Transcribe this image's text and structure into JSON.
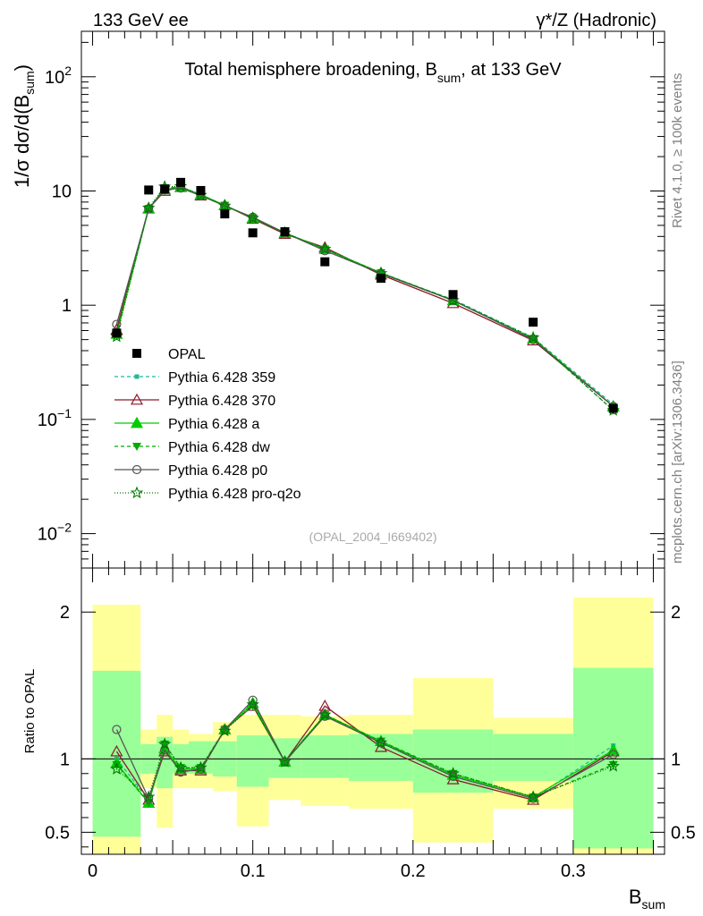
{
  "header": {
    "left_label": "133 GeV ee",
    "right_label": "γ*/Z (Hadronic)",
    "side_label_top": "Rivet 4.1.0, ≥ 100k events",
    "side_label_bottom": "mcplots.cern.ch [arXiv:1306.3436]"
  },
  "chart_data": [
    {
      "type": "line",
      "title": "Total hemisphere broadening, B_sum, at 133 GeV",
      "title_main": "Total hemisphere broadening, B",
      "title_sub": "sum",
      "title_tail": ", at 133 GeV",
      "ylabel": "1/σ  dσ/d(B_sum)",
      "yscale": "log",
      "ylim": [
        0.005,
        250
      ],
      "xlim": [
        -0.007,
        0.357
      ],
      "y_ticks": [
        {
          "value": 0.01,
          "base": "10",
          "exp": "−2"
        },
        {
          "value": 0.1,
          "base": "10",
          "exp": "−1"
        },
        {
          "value": 1,
          "base": "1",
          "exp": ""
        },
        {
          "value": 10,
          "base": "10",
          "exp": ""
        },
        {
          "value": 100,
          "base": "10",
          "exp": "2"
        }
      ],
      "watermark": "(OPAL_2004_I669402)",
      "legend_position": "bottom-left",
      "data": {
        "name": "OPAL",
        "x": [
          0.015,
          0.035,
          0.045,
          0.055,
          0.0675,
          0.0825,
          0.1,
          0.12,
          0.145,
          0.18,
          0.225,
          0.275,
          0.325
        ],
        "values": [
          0.57,
          10.2,
          10.4,
          11.9,
          10.1,
          6.3,
          4.3,
          4.4,
          2.4,
          1.72,
          1.24,
          0.71,
          0.125
        ]
      },
      "series": [
        {
          "name": "Pythia 6.428 359",
          "color": "#1fb89a",
          "marker": "square-small",
          "dash": "4,3",
          "values": [
            0.56,
            7.1,
            10.5,
            10.9,
            9.2,
            7.5,
            5.8,
            4.3,
            3.1,
            1.9,
            1.12,
            0.52,
            0.135
          ]
        },
        {
          "name": "Pythia 6.428 370",
          "color": "#8b1a2a",
          "marker": "triangle-open",
          "dash": "",
          "values": [
            0.61,
            7.0,
            10.0,
            10.8,
            9.1,
            7.5,
            5.7,
            4.2,
            3.2,
            1.85,
            1.04,
            0.49,
            0.13
          ]
        },
        {
          "name": "Pythia 6.428 a",
          "color": "#00cc00",
          "marker": "triangle-filled",
          "dash": "",
          "values": [
            0.56,
            7.0,
            10.3,
            10.8,
            9.3,
            7.5,
            5.8,
            4.3,
            3.1,
            1.92,
            1.1,
            0.51,
            0.13
          ]
        },
        {
          "name": "Pythia 6.428 dw",
          "color": "#00aa00",
          "marker": "triangle-down",
          "dash": "4,3",
          "values": [
            0.55,
            7.0,
            10.6,
            10.9,
            9.2,
            7.5,
            5.8,
            4.3,
            3.1,
            1.92,
            1.11,
            0.51,
            0.12
          ]
        },
        {
          "name": "Pythia 6.428 p0",
          "color": "#555555",
          "marker": "circle-open",
          "dash": "",
          "values": [
            0.68,
            7.0,
            10.2,
            10.6,
            9.1,
            7.4,
            5.9,
            4.3,
            3.0,
            1.9,
            1.1,
            0.5,
            0.13
          ]
        },
        {
          "name": "Pythia 6.428 pro-q2o",
          "color": "#007700",
          "marker": "star-open",
          "dash": "1,2",
          "values": [
            0.53,
            7.1,
            10.9,
            11.0,
            9.2,
            7.4,
            5.8,
            4.3,
            3.1,
            1.9,
            1.1,
            0.52,
            0.12
          ]
        }
      ]
    },
    {
      "type": "line",
      "title": "Ratio to OPAL",
      "ylabel": "Ratio to OPAL",
      "xlabel": "B_sum",
      "xlabel_main": "B",
      "xlabel_sub": "sum",
      "ylim": [
        0.35,
        2.3
      ],
      "xlim": [
        -0.007,
        0.357
      ],
      "y_ticks": [
        0.5,
        1,
        2
      ],
      "x_ticks": [
        0,
        0.1,
        0.2,
        0.3
      ],
      "x_tick_labels": [
        "0",
        "0.1",
        "0.2",
        "0.3"
      ],
      "reference_line": 1,
      "bins": [
        {
          "lo": 0.0,
          "hi": 0.03,
          "stat_lo": 0.47,
          "stat_hi": 1.6,
          "tot_lo": 0.0,
          "tot_hi": 2.05
        },
        {
          "lo": 0.03,
          "hi": 0.04,
          "stat_lo": 0.9,
          "stat_hi": 1.1,
          "tot_lo": 0.8,
          "tot_hi": 1.2
        },
        {
          "lo": 0.04,
          "hi": 0.05,
          "stat_lo": 0.8,
          "stat_hi": 1.15,
          "tot_lo": 0.53,
          "tot_hi": 1.3
        },
        {
          "lo": 0.05,
          "hi": 0.06,
          "stat_lo": 0.9,
          "stat_hi": 1.1,
          "tot_lo": 0.8,
          "tot_hi": 1.2
        },
        {
          "lo": 0.06,
          "hi": 0.075,
          "stat_lo": 0.9,
          "stat_hi": 1.12,
          "tot_lo": 0.8,
          "tot_hi": 1.17
        },
        {
          "lo": 0.075,
          "hi": 0.09,
          "stat_lo": 0.88,
          "stat_hi": 1.12,
          "tot_lo": 0.78,
          "tot_hi": 1.25
        },
        {
          "lo": 0.09,
          "hi": 0.11,
          "stat_lo": 0.81,
          "stat_hi": 1.16,
          "tot_lo": 0.54,
          "tot_hi": 1.3
        },
        {
          "lo": 0.11,
          "hi": 0.13,
          "stat_lo": 0.87,
          "stat_hi": 1.14,
          "tot_lo": 0.72,
          "tot_hi": 1.3
        },
        {
          "lo": 0.13,
          "hi": 0.16,
          "stat_lo": 0.87,
          "stat_hi": 1.16,
          "tot_lo": 0.68,
          "tot_hi": 1.29
        },
        {
          "lo": 0.16,
          "hi": 0.2,
          "stat_lo": 0.85,
          "stat_hi": 1.17,
          "tot_lo": 0.66,
          "tot_hi": 1.3
        },
        {
          "lo": 0.2,
          "hi": 0.25,
          "stat_lo": 0.77,
          "stat_hi": 1.2,
          "tot_lo": 0.43,
          "tot_hi": 1.55
        },
        {
          "lo": 0.25,
          "hi": 0.3,
          "stat_lo": 0.85,
          "stat_hi": 1.17,
          "tot_lo": 0.66,
          "tot_hi": 1.28
        },
        {
          "lo": 0.3,
          "hi": 0.35,
          "stat_lo": 0.39,
          "stat_hi": 1.62,
          "tot_lo": 0.0,
          "tot_hi": 2.1
        }
      ],
      "stat_color": "#99ff99",
      "tot_color": "#ffff99",
      "series_ratios": [
        [
          1.0,
          0.72,
          1.06,
          0.93,
          0.93,
          1.2,
          1.38,
          0.98,
          1.3,
          1.11,
          0.88,
          0.73,
          1.09
        ],
        [
          1.05,
          0.72,
          1.05,
          0.92,
          0.92,
          1.2,
          1.36,
          0.98,
          1.36,
          1.08,
          0.86,
          0.72,
          1.05
        ],
        [
          0.97,
          0.7,
          1.07,
          0.93,
          0.93,
          1.2,
          1.38,
          0.98,
          1.3,
          1.12,
          0.89,
          0.74,
          1.06
        ],
        [
          0.96,
          0.7,
          1.1,
          0.94,
          0.94,
          1.2,
          1.36,
          0.98,
          1.3,
          1.12,
          0.9,
          0.74,
          0.96
        ],
        [
          1.2,
          0.73,
          1.06,
          0.91,
          0.93,
          1.2,
          1.4,
          0.98,
          1.29,
          1.11,
          0.88,
          0.73,
          1.03
        ],
        [
          0.93,
          0.74,
          1.1,
          0.94,
          0.94,
          1.19,
          1.37,
          0.98,
          1.3,
          1.11,
          0.9,
          0.74,
          0.95
        ]
      ]
    }
  ]
}
